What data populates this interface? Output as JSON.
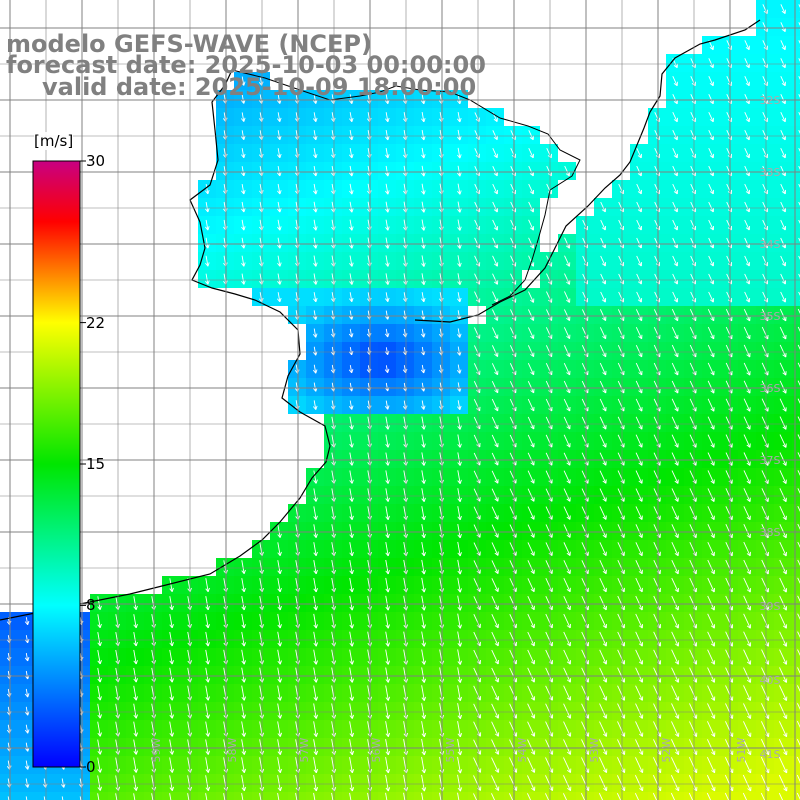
{
  "title": {
    "line1": "modelo GEFS-WAVE (NCEP)",
    "line2": "forecast date: 2025-10-03 00:00:00",
    "line3": "valid date: 2025-10-09 18:00:00"
  },
  "colorbar": {
    "unit": "[m/s]",
    "min": 0,
    "max": 30,
    "ticks": [
      "30",
      "22",
      "15",
      "8",
      "0"
    ],
    "colors": [
      "#0000ff",
      "#00ffff",
      "#00ff00",
      "#ffff00",
      "#ff0000",
      "#cc0088"
    ]
  },
  "lat_labels": [
    "32S",
    "33S",
    "34S",
    "35S",
    "36S",
    "37S",
    "38S",
    "39S",
    "40S",
    "41S"
  ],
  "lon_labels": [
    "59W",
    "58W",
    "57W",
    "56W",
    "55W",
    "54W",
    "53W",
    "52W",
    "51W"
  ],
  "colors": {
    "land": "#ffffff",
    "coast": "#000000",
    "grid": "#808080",
    "arrow": "#ffffff",
    "title": "#808080"
  }
}
